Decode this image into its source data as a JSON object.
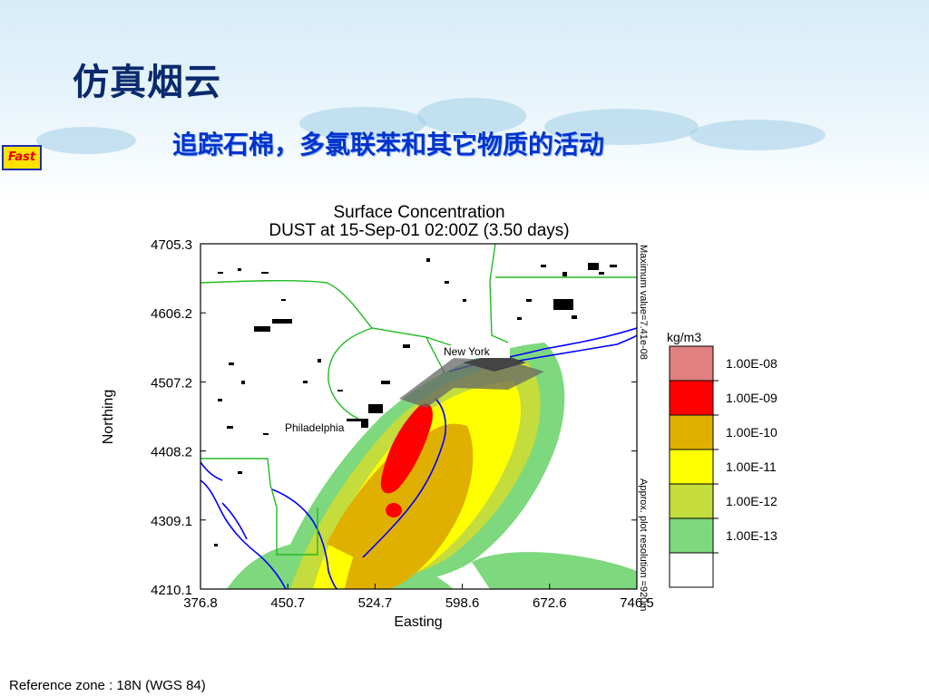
{
  "slide": {
    "title": "仿真烟云",
    "subtitle": "追踪石棉，多氯联苯和其它物质的活动",
    "badge": "Fast",
    "footnote": "Reference zone : 18N (WGS 84)"
  },
  "plot": {
    "title_line1": "Surface Concentration",
    "title_line2": "DUST at 15-Sep-01 02:00Z (3.50 days)",
    "xlabel": "Easting",
    "ylabel": "Northing",
    "x_ticks": [
      "376.8",
      "450.7",
      "524.7",
      "598.6",
      "672.6",
      "746.5"
    ],
    "y_ticks": [
      "4705.3",
      "4606.2",
      "4507.2",
      "4408.2",
      "4309.1",
      "4210.1"
    ],
    "x_range": [
      376.8,
      746.5
    ],
    "y_range": [
      4210.1,
      4705.3
    ],
    "right_note_top": "Maximum value=7.41e-08",
    "right_note_bottom": "Approx. plot resolution =920m",
    "city_labels": [
      "New York",
      "Philadelphia"
    ]
  },
  "legend": {
    "unit": "kg/m3",
    "labels": [
      "1.00E-08",
      "1.00E-09",
      "1.00E-10",
      "1.00E-11",
      "1.00E-12",
      "1.00E-13"
    ],
    "colors": [
      "#e08080",
      "#ff0000",
      "#e0b000",
      "#ffff00",
      "#c4dc3c",
      "#7ed87e",
      "#ffffff"
    ]
  },
  "colors": {
    "water": "#0000ff",
    "state_border": "#22bb22",
    "title": "#0a2a6e",
    "subtitle": "#0033cc"
  }
}
